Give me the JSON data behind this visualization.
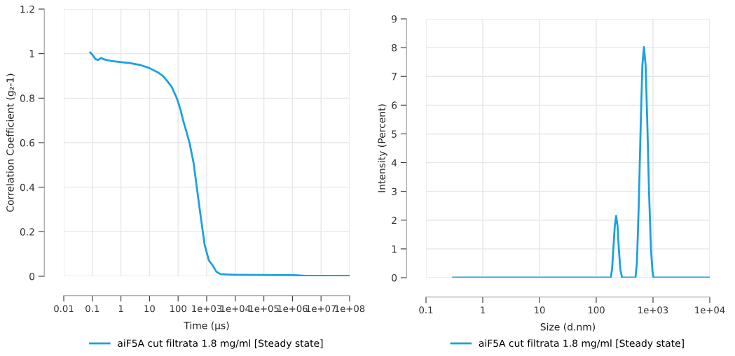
{
  "chart_data": [
    {
      "type": "line",
      "xlabel": "Time (µs)",
      "ylabel": "Correlation Coefficient (g₂-1)",
      "log": "x",
      "grid": true,
      "legend": "bottom",
      "marker": "none",
      "line_style": "solid",
      "xlim": [
        0.01,
        100000000
      ],
      "xticks": [
        0.01,
        0.1,
        1,
        10,
        100,
        {
          "value": 1000,
          "label": "1e+03"
        },
        {
          "value": 10000,
          "label": "1e+04"
        },
        {
          "value": 100000,
          "label": "1e+05"
        },
        {
          "value": 1000000,
          "label": "1e+06"
        },
        {
          "value": 10000000,
          "label": "1e+07"
        },
        {
          "value": 100000000,
          "label": "1e+08"
        }
      ],
      "ylim": [
        0,
        1.2
      ],
      "yticks": [
        0,
        0.2,
        0.4,
        0.6,
        0.8,
        1,
        1.2
      ],
      "series": [
        {
          "name": "aiF5A cut filtrata 1.8 mg/ml [Steady state]",
          "color": "#1ba1e2",
          "x": [
            0.085,
            0.1,
            0.13,
            0.16,
            0.2,
            0.25,
            0.3,
            0.5,
            1,
            2,
            5,
            10,
            20,
            29,
            40,
            60,
            90,
            120,
            150,
            195,
            250,
            347,
            450,
            600,
            850,
            1200,
            1600,
            2200,
            3000,
            5000,
            10000,
            100000,
            1000000,
            1500000,
            3000000,
            100000000
          ],
          "values": [
            1.005,
            0.995,
            0.975,
            0.972,
            0.98,
            0.975,
            0.972,
            0.966,
            0.962,
            0.958,
            0.948,
            0.935,
            0.915,
            0.9,
            0.88,
            0.85,
            0.8,
            0.75,
            0.7,
            0.65,
            0.6,
            0.51,
            0.4,
            0.28,
            0.14,
            0.07,
            0.05,
            0.02,
            0.01,
            0.008,
            0.007,
            0.006,
            0.005,
            0.004,
            0.002,
            0.002
          ]
        }
      ]
    },
    {
      "type": "line",
      "xlabel": "Size (d.nm)",
      "ylabel": "Intensity (Percent)",
      "log": "x",
      "grid": true,
      "legend": "bottom",
      "marker": "none",
      "line_style": "solid",
      "xlim": [
        0.1,
        10000
      ],
      "xticks": [
        0.1,
        1,
        10,
        100,
        {
          "value": 1000,
          "label": "1e+03"
        },
        {
          "value": 10000,
          "label": "1e+04"
        }
      ],
      "ylim": [
        0,
        9
      ],
      "yticks": [
        0,
        1,
        2,
        3,
        4,
        5,
        6,
        7,
        8,
        9
      ],
      "series": [
        {
          "name": "aiF5A cut filtrata 1.8 mg/ml [Steady state]",
          "color": "#1ba1e2",
          "x": [
            0.3,
            1,
            10,
            100,
            180,
            190,
            200,
            212,
            224,
            237,
            250,
            265,
            285,
            400,
            490,
            520,
            560,
            610,
            650,
            692,
            740,
            790,
            850,
            920,
            980,
            1020,
            2000,
            10000
          ],
          "values": [
            0,
            0,
            0,
            0,
            0,
            0.3,
            1.0,
            1.8,
            2.15,
            1.8,
            1.0,
            0.3,
            0,
            0,
            0,
            0.5,
            2.5,
            5.5,
            7.4,
            8.02,
            7.4,
            5.5,
            3.0,
            1.0,
            0.2,
            0,
            0,
            0
          ]
        }
      ]
    }
  ]
}
